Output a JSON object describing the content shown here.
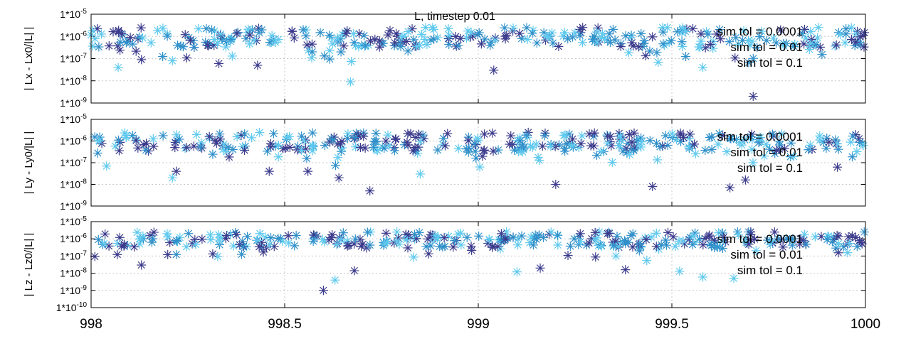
{
  "chart_data": {
    "type": "scatter",
    "title": "L, timestep 0.01",
    "x_range": [
      998,
      1000
    ],
    "x_ticks": [
      998,
      998.5,
      999,
      999.5,
      1000
    ],
    "x_tick_labels": [
      "998",
      "998.5",
      "999",
      "999.5",
      "1000"
    ],
    "grid": true,
    "y_scale": "log",
    "colors": {
      "sim tol = 0.0001": "#3b3a8c",
      "sim tol = 0.01": "#2f8fc9",
      "sim tol = 0.1": "#5fc9ee"
    },
    "panels": [
      {
        "ylabel": "| Lx - Lx0/|L| |",
        "ylim": [
          1e-09,
          1e-05
        ],
        "y_tick_labels": [
          "1*10^-9",
          "1*10^-8",
          "1*10^-7",
          "1*10^-6",
          "1*10^-5"
        ],
        "legend": [
          "sim tol = 0.0001",
          "sim tol = 0.01",
          "sim tol = 0.1"
        ],
        "legend_position": "top-right",
        "outliers": [
          {
            "series": "sim tol = 0.1",
            "x": 998.07,
            "y": 4e-08
          },
          {
            "series": "sim tol = 0.0001",
            "x": 998.13,
            "y": 9e-08
          },
          {
            "series": "sim tol = 0.1",
            "x": 998.21,
            "y": 8e-08
          },
          {
            "series": "sim tol = 0.0001",
            "x": 998.33,
            "y": 6e-08
          },
          {
            "series": "sim tol = 0.0001",
            "x": 998.43,
            "y": 5e-08
          },
          {
            "series": "sim tol = 0.1",
            "x": 998.67,
            "y": 9e-09
          },
          {
            "series": "sim tol = 0.0001",
            "x": 999.04,
            "y": 3e-08
          },
          {
            "series": "sim tol = 0.1",
            "x": 999.58,
            "y": 4e-08
          },
          {
            "series": "sim tol = 0.0001",
            "x": 999.71,
            "y": 2e-09
          }
        ]
      },
      {
        "ylabel": "| Ly - Ly0/|L| |",
        "ylim": [
          1e-09,
          1e-05
        ],
        "y_tick_labels": [
          "1*10^-9",
          "1*10^-8",
          "1*10^-7",
          "1*10^-6",
          "1*10^-5"
        ],
        "legend": [
          "sim tol = 0.0001",
          "sim tol = 0.01",
          "sim tol = 0.1"
        ],
        "legend_position": "top-right",
        "outliers": [
          {
            "series": "sim tol = 0.1",
            "x": 998.04,
            "y": 7e-08
          },
          {
            "series": "sim tol = 0.1",
            "x": 998.21,
            "y": 2e-08
          },
          {
            "series": "sim tol = 0.0001",
            "x": 998.22,
            "y": 4e-08
          },
          {
            "series": "sim tol = 0.0001",
            "x": 998.46,
            "y": 4e-08
          },
          {
            "series": "sim tol = 0.0001",
            "x": 998.56,
            "y": 4e-08
          },
          {
            "series": "sim tol = 0.0001",
            "x": 998.64,
            "y": 2e-08
          },
          {
            "series": "sim tol = 0.0001",
            "x": 998.72,
            "y": 5e-09
          },
          {
            "series": "sim tol = 0.1",
            "x": 998.85,
            "y": 3e-08
          },
          {
            "series": "sim tol = 0.0001",
            "x": 999.2,
            "y": 1e-08
          },
          {
            "series": "sim tol = 0.0001",
            "x": 999.45,
            "y": 8e-09
          },
          {
            "series": "sim tol = 0.0001",
            "x": 999.65,
            "y": 7e-09
          },
          {
            "series": "sim tol = 0.0001",
            "x": 999.69,
            "y": 1.6e-08
          }
        ]
      },
      {
        "ylabel": "| Lz - Lz0/|L| |",
        "ylim": [
          1e-10,
          1e-05
        ],
        "y_tick_labels": [
          "1*10^-10",
          "1*10^-9",
          "1*10^-8",
          "1*10^-7",
          "1*10^-6",
          "1*10^-5"
        ],
        "legend": [
          "sim tol = 0.0001",
          "sim tol = 0.01",
          "sim tol = 0.1"
        ],
        "legend_position": "top-right",
        "outliers": [
          {
            "series": "sim tol = 0.0001",
            "x": 998.13,
            "y": 3e-08
          },
          {
            "series": "sim tol = 0.0001",
            "x": 998.6,
            "y": 1e-09
          },
          {
            "series": "sim tol = 0.1",
            "x": 998.63,
            "y": 4e-09
          },
          {
            "series": "sim tol = 0.0001",
            "x": 998.68,
            "y": 1.4e-08
          },
          {
            "series": "sim tol = 0.1",
            "x": 999.1,
            "y": 1.2e-08
          },
          {
            "series": "sim tol = 0.0001",
            "x": 999.16,
            "y": 2e-08
          },
          {
            "series": "sim tol = 0.0001",
            "x": 999.38,
            "y": 1.6e-08
          },
          {
            "series": "sim tol = 0.1",
            "x": 999.58,
            "y": 6e-09
          },
          {
            "series": "sim tol = 0.1",
            "x": 999.66,
            "y": 5e-09
          },
          {
            "series": "sim tol = 0.1",
            "x": 999.52,
            "y": 1.3e-08
          }
        ]
      }
    ]
  }
}
